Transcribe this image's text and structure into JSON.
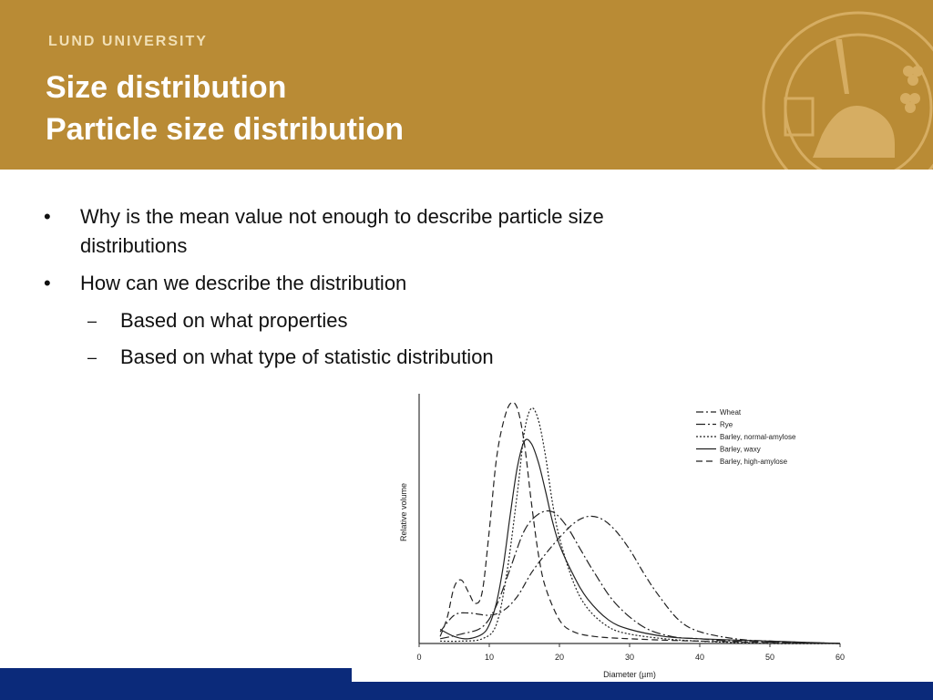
{
  "header": {
    "university": "LUND UNIVERSITY",
    "title_line1": "Size distribution",
    "title_line2": "Particle size distribution",
    "seal_icon": "lund-university-seal-icon"
  },
  "colors": {
    "header_bg": "#b98b35",
    "university_text": "#f1dfb5",
    "footer_bg": "#0b2a7a"
  },
  "body": {
    "bullets": [
      {
        "marker": "•",
        "text_line1": "Why is the mean value not enough to describe particle size",
        "text_line2": "distributions"
      },
      {
        "marker": "•",
        "text_line1": "How can we describe the distribution"
      }
    ],
    "sub_bullets": [
      {
        "marker": "–",
        "text": "Based on what properties"
      },
      {
        "marker": "–",
        "text": "Based on what type of statistic distribution"
      }
    ]
  },
  "chart_data": {
    "type": "line",
    "title": "",
    "xlabel": "Diameter (µm)",
    "ylabel": "Relative volume",
    "xlim": [
      0,
      60
    ],
    "ylim": [
      0,
      1
    ],
    "x_ticks": [
      0,
      10,
      20,
      30,
      40,
      50,
      60
    ],
    "x_tick_labels": [
      "0",
      "10",
      "20",
      "30",
      "40",
      "50",
      "60"
    ],
    "grid": false,
    "legend_position": "top-right",
    "series": [
      {
        "name": "Wheat",
        "dash": "8,3,2,3",
        "x": [
          3,
          5,
          7,
          10,
          12,
          14,
          16,
          18,
          20,
          22,
          24,
          26,
          28,
          30,
          32,
          34,
          37,
          40,
          45,
          50,
          60
        ],
        "y": [
          0.05,
          0.12,
          0.13,
          0.12,
          0.14,
          0.2,
          0.3,
          0.38,
          0.45,
          0.51,
          0.54,
          0.53,
          0.48,
          0.4,
          0.3,
          0.21,
          0.1,
          0.05,
          0.02,
          0.01,
          0.0
        ]
      },
      {
        "name": "Rye",
        "dash": "10,3,2,3",
        "x": [
          3,
          6,
          9,
          11,
          13,
          15,
          17,
          19,
          21,
          23,
          25,
          28,
          32,
          36,
          40,
          45,
          60
        ],
        "y": [
          0.02,
          0.04,
          0.07,
          0.16,
          0.32,
          0.48,
          0.55,
          0.56,
          0.5,
          0.4,
          0.3,
          0.17,
          0.07,
          0.03,
          0.02,
          0.01,
          0.0
        ]
      },
      {
        "name": "Barley, normal-amylose",
        "dash": "2,2",
        "x": [
          3,
          6,
          9,
          11,
          12.5,
          14,
          15,
          16,
          17,
          18,
          19,
          20,
          22,
          24,
          27,
          30,
          35,
          40,
          50,
          60
        ],
        "y": [
          0.01,
          0.01,
          0.02,
          0.08,
          0.3,
          0.64,
          0.9,
          1.0,
          0.95,
          0.8,
          0.6,
          0.45,
          0.26,
          0.15,
          0.07,
          0.04,
          0.02,
          0.01,
          0.0,
          0.0
        ]
      },
      {
        "name": "Barley, waxy",
        "dash": "",
        "x": [
          3,
          5,
          7,
          9,
          10,
          11,
          12,
          13,
          14,
          15,
          16,
          17,
          18,
          19,
          20,
          22,
          24,
          27,
          30,
          35,
          40,
          50,
          60
        ],
        "y": [
          0.06,
          0.03,
          0.02,
          0.04,
          0.08,
          0.17,
          0.33,
          0.55,
          0.75,
          0.86,
          0.85,
          0.77,
          0.65,
          0.52,
          0.42,
          0.29,
          0.19,
          0.1,
          0.06,
          0.03,
          0.02,
          0.01,
          0.0
        ]
      },
      {
        "name": "Barley, high-amylose",
        "dash": "7,4",
        "x": [
          3,
          4,
          5,
          6,
          7,
          8,
          9,
          10,
          11,
          12,
          13,
          14,
          15,
          16,
          17,
          18,
          20,
          22,
          25,
          30,
          40,
          60
        ],
        "y": [
          0.03,
          0.11,
          0.24,
          0.27,
          0.22,
          0.17,
          0.22,
          0.48,
          0.78,
          0.94,
          1.02,
          1.0,
          0.85,
          0.6,
          0.38,
          0.24,
          0.1,
          0.05,
          0.03,
          0.02,
          0.01,
          0.0
        ]
      }
    ]
  }
}
